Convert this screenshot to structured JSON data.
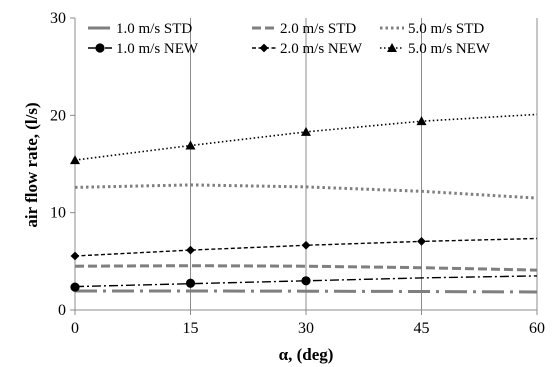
{
  "chart_data": {
    "type": "line",
    "title": "",
    "xlabel": "α, (deg)",
    "ylabel": "air flow rate, (l/s)",
    "xlim": [
      0,
      60
    ],
    "ylim": [
      0,
      30
    ],
    "xticks": [
      0,
      15,
      30,
      45,
      60
    ],
    "yticks": [
      0,
      10,
      20,
      30
    ],
    "vertical_grid": true,
    "horizontal_grid": false,
    "legend_position": "top",
    "series": [
      {
        "name": "1.0 m/s STD",
        "x": [
          0,
          15,
          30,
          45,
          60
        ],
        "y": [
          1.95,
          1.95,
          1.93,
          1.9,
          1.85
        ],
        "color": "#7f7f7f",
        "style": "long-dash-dot",
        "marker": "none",
        "markers_x": [],
        "markers_y": []
      },
      {
        "name": "2.0 m/s STD",
        "x": [
          0,
          15,
          30,
          45,
          60
        ],
        "y": [
          4.5,
          4.55,
          4.5,
          4.35,
          4.1
        ],
        "color": "#7f7f7f",
        "style": "dashed",
        "marker": "none",
        "markers_x": [],
        "markers_y": []
      },
      {
        "name": "5.0 m/s STD",
        "x": [
          0,
          15,
          30,
          45,
          60
        ],
        "y": [
          12.6,
          12.85,
          12.65,
          12.2,
          11.5
        ],
        "color": "#7f7f7f",
        "style": "dotted",
        "marker": "none",
        "markers_x": [],
        "markers_y": []
      },
      {
        "name": "1.0 m/s NEW",
        "x": [
          0,
          15,
          30,
          45,
          60
        ],
        "y": [
          2.4,
          2.7,
          3.0,
          3.3,
          3.5
        ],
        "color": "#000000",
        "style": "dash-dot",
        "marker": "circle",
        "markers_x": [
          0,
          15,
          30
        ],
        "markers_y": [
          2.35,
          2.75,
          3.0
        ]
      },
      {
        "name": "2.0 m/s NEW",
        "x": [
          0,
          15,
          30,
          45,
          60
        ],
        "y": [
          5.55,
          6.15,
          6.65,
          7.05,
          7.35
        ],
        "color": "#000000",
        "style": "short-dash",
        "marker": "diamond",
        "markers_x": [
          0,
          15,
          30,
          45
        ],
        "markers_y": [
          5.55,
          6.15,
          6.65,
          7.05
        ]
      },
      {
        "name": "5.0 m/s NEW",
        "x": [
          0,
          15,
          30,
          45,
          60
        ],
        "y": [
          15.4,
          16.9,
          18.3,
          19.4,
          20.1
        ],
        "color": "#000000",
        "style": "dotted",
        "marker": "triangle",
        "markers_x": [
          0,
          15,
          30,
          45
        ],
        "markers_y": [
          15.4,
          16.9,
          18.3,
          19.4
        ]
      }
    ]
  }
}
